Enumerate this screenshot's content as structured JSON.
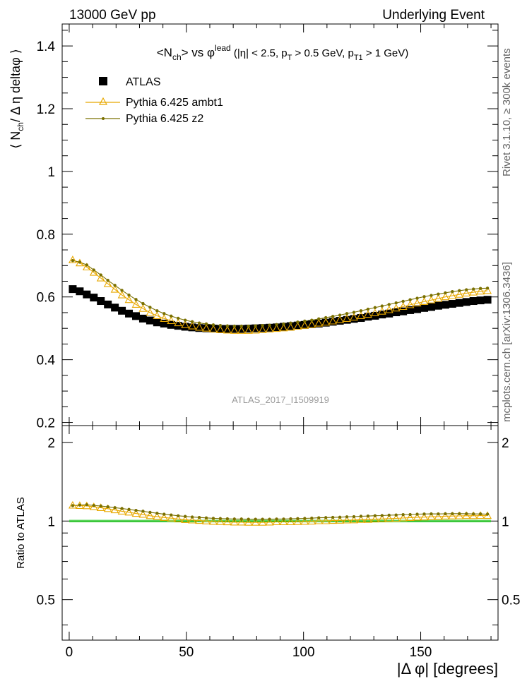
{
  "header": {
    "left_title": "13000 GeV pp",
    "right_title": "Underlying Event"
  },
  "side_labels": {
    "rivet": "Rivet 3.1.10, ≥ 300k events",
    "mcplots": "mcplots.cern.ch [arXiv:1306.3436]"
  },
  "colors": {
    "atlas": "#000000",
    "ambt1": "#e8a800",
    "z2": "#7a7000",
    "ref_band": "#8ee68e",
    "ref_line": "#00b000"
  },
  "chart_data": {
    "type": "scatter",
    "title_parts": {
      "a": "<N",
      "a_sub": "ch",
      "b": "> vs φ",
      "b_sup": "lead",
      "c": " (|η| < 2.5, p",
      "c_sub": "T",
      "d": " > 0.5 GeV, p",
      "d_sub": "T1",
      "e": " > 1 GeV)"
    },
    "watermark": "ATLAS_2017_I1509919",
    "ylabel_main": "⟨ N_ch / Δ η deltaφ ⟩",
    "ylabel_ratio": "Ratio to ATLAS",
    "xlabel": "|Δ φ| [degrees]",
    "xlim": [
      -3,
      183
    ],
    "ylim_main": [
      0.19,
      1.47
    ],
    "ylim_ratio": [
      0.35,
      2.32
    ],
    "ratio_log": true,
    "x_ticks": [
      0,
      50,
      100,
      150
    ],
    "x_tick_labels": [
      "0",
      "50",
      "100",
      "150"
    ],
    "y_ticks_main": [
      0.2,
      0.4,
      0.6,
      0.8,
      1.0,
      1.2,
      1.4
    ],
    "y_tick_labels_main": [
      "0.2",
      "0.4",
      "0.6",
      "0.8",
      "1",
      "1.2",
      "1.4"
    ],
    "y_ticks_ratio": [
      0.5,
      1,
      2
    ],
    "y_tick_labels_ratio": [
      "0.5",
      "1",
      "2"
    ],
    "legend": [
      {
        "name": "ATLAS",
        "marker": "square"
      },
      {
        "name": "Pythia 6.425 ambt1",
        "marker": "triangle"
      },
      {
        "name": "Pythia 6.425 z2",
        "marker": "dot"
      }
    ],
    "x": [
      1.5,
      4.5,
      7.5,
      10.5,
      13.5,
      16.5,
      19.5,
      22.5,
      25.5,
      28.5,
      31.5,
      34.5,
      37.5,
      40.5,
      43.5,
      46.5,
      49.5,
      52.5,
      55.5,
      58.5,
      61.5,
      64.5,
      67.5,
      70.5,
      73.5,
      76.5,
      79.5,
      82.5,
      85.5,
      88.5,
      91.5,
      94.5,
      97.5,
      100.5,
      103.5,
      106.5,
      109.5,
      112.5,
      115.5,
      118.5,
      121.5,
      124.5,
      127.5,
      130.5,
      133.5,
      136.5,
      139.5,
      142.5,
      145.5,
      148.5,
      151.5,
      154.5,
      157.5,
      160.5,
      163.5,
      166.5,
      169.5,
      172.5,
      175.5,
      178.5
    ],
    "series": [
      {
        "name": "ATLAS",
        "values": [
          0.625,
          0.618,
          0.608,
          0.598,
          0.587,
          0.576,
          0.566,
          0.556,
          0.547,
          0.539,
          0.531,
          0.525,
          0.519,
          0.515,
          0.511,
          0.508,
          0.505,
          0.503,
          0.501,
          0.5,
          0.499,
          0.498,
          0.498,
          0.498,
          0.498,
          0.499,
          0.5,
          0.501,
          0.502,
          0.503,
          0.505,
          0.507,
          0.509,
          0.511,
          0.513,
          0.515,
          0.518,
          0.521,
          0.524,
          0.527,
          0.53,
          0.533,
          0.537,
          0.54,
          0.544,
          0.547,
          0.551,
          0.554,
          0.558,
          0.561,
          0.565,
          0.568,
          0.572,
          0.575,
          0.578,
          0.581,
          0.584,
          0.587,
          0.589,
          0.591
        ]
      },
      {
        "name": "Pythia 6.425 ambt1",
        "values": [
          0.718,
          0.708,
          0.695,
          0.678,
          0.66,
          0.642,
          0.624,
          0.606,
          0.591,
          0.576,
          0.563,
          0.55,
          0.54,
          0.531,
          0.524,
          0.517,
          0.511,
          0.507,
          0.503,
          0.5,
          0.497,
          0.495,
          0.494,
          0.493,
          0.493,
          0.493,
          0.494,
          0.495,
          0.497,
          0.499,
          0.501,
          0.503,
          0.506,
          0.509,
          0.512,
          0.516,
          0.519,
          0.523,
          0.527,
          0.531,
          0.535,
          0.54,
          0.544,
          0.549,
          0.554,
          0.559,
          0.564,
          0.569,
          0.575,
          0.58,
          0.585,
          0.59,
          0.595,
          0.6,
          0.604,
          0.608,
          0.612,
          0.615,
          0.618,
          0.62
        ]
      },
      {
        "name": "Pythia 6.425 z2",
        "values": [
          0.716,
          0.711,
          0.702,
          0.686,
          0.67,
          0.653,
          0.637,
          0.621,
          0.606,
          0.592,
          0.579,
          0.567,
          0.556,
          0.547,
          0.539,
          0.532,
          0.526,
          0.521,
          0.517,
          0.514,
          0.511,
          0.509,
          0.508,
          0.507,
          0.507,
          0.507,
          0.508,
          0.509,
          0.51,
          0.512,
          0.514,
          0.517,
          0.52,
          0.523,
          0.526,
          0.53,
          0.534,
          0.538,
          0.542,
          0.547,
          0.551,
          0.556,
          0.561,
          0.566,
          0.571,
          0.576,
          0.581,
          0.586,
          0.591,
          0.596,
          0.601,
          0.605,
          0.609,
          0.613,
          0.617,
          0.62,
          0.623,
          0.625,
          0.627,
          0.628
        ]
      }
    ]
  }
}
